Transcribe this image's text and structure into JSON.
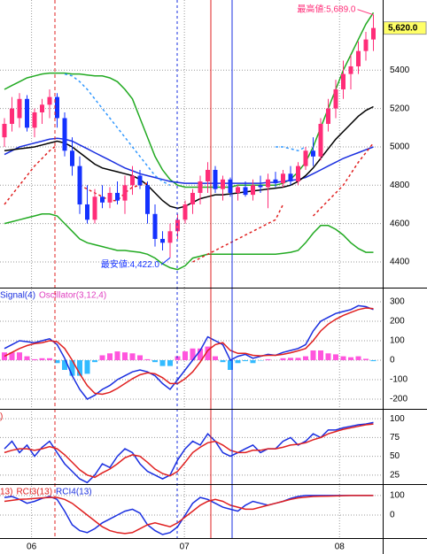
{
  "chart_data": [
    {
      "type": "candlestick",
      "ylim": [
        4266,
        5766
      ],
      "yticks": [
        4400,
        4600,
        4800,
        5000,
        5200,
        5400
      ],
      "up_color": "#ff2d78",
      "down_color": "#1432ff",
      "grid": true,
      "open": [
        5050,
        5120,
        5150,
        5250,
        5100,
        5180,
        5220,
        5260,
        5150,
        4980,
        4900,
        4700,
        4620,
        4740,
        4710,
        4760,
        4720,
        4800,
        4850,
        4800,
        4650,
        4520,
        4500,
        4560,
        4620,
        4700,
        4760,
        4820,
        4880,
        4780,
        4830,
        4760,
        4790,
        4750,
        4800,
        4790,
        4830,
        4810,
        4860,
        4820,
        4900,
        4980,
        4950,
        5120,
        5200,
        5300,
        5380,
        5420,
        5500,
        5560
      ],
      "high": [
        5150,
        5260,
        5280,
        5270,
        5200,
        5250,
        5300,
        5280,
        5180,
        5050,
        4950,
        4800,
        4780,
        4800,
        4790,
        4820,
        4850,
        4900,
        4880,
        4820,
        4700,
        4560,
        4600,
        4650,
        4720,
        4780,
        4850,
        4920,
        4900,
        4850,
        4840,
        4800,
        4820,
        4830,
        4850,
        4860,
        4870,
        4880,
        4900,
        4920,
        5000,
        5050,
        5150,
        5250,
        5350,
        5450,
        5480,
        5550,
        5600,
        5689
      ],
      "low": [
        5000,
        5080,
        5100,
        5080,
        5050,
        5120,
        5150,
        5100,
        4950,
        4850,
        4650,
        4600,
        4600,
        4680,
        4680,
        4700,
        4650,
        4750,
        4780,
        4600,
        4480,
        4460,
        4422,
        4520,
        4600,
        4650,
        4700,
        4760,
        4760,
        4720,
        4740,
        4720,
        4740,
        4720,
        4760,
        4680,
        4790,
        4790,
        4800,
        4800,
        4880,
        4900,
        4930,
        5080,
        5150,
        5250,
        5300,
        5380,
        5450,
        5500
      ],
      "close": [
        5120,
        5200,
        5250,
        5100,
        5180,
        5220,
        5260,
        5150,
        4980,
        4900,
        4700,
        4620,
        4740,
        4710,
        4760,
        4720,
        4800,
        4850,
        4800,
        4650,
        4520,
        4500,
        4560,
        4620,
        4700,
        4760,
        4820,
        4880,
        4780,
        4830,
        4760,
        4790,
        4750,
        4800,
        4790,
        4830,
        4810,
        4860,
        4820,
        4900,
        4980,
        4950,
        5120,
        5200,
        5300,
        5380,
        5420,
        5500,
        5560,
        5620
      ],
      "series": [
        {
          "color": "#22aa22",
          "values": [
            5300,
            5320,
            5340,
            5360,
            5370,
            5380,
            5385,
            5385,
            5385,
            5380,
            5380,
            5375,
            5370,
            5370,
            5360,
            5340,
            5300,
            5250,
            5150,
            5050,
            4950,
            4880,
            4830,
            4800,
            4790,
            4790,
            4790,
            4790,
            4790,
            4790,
            4790,
            4800,
            4800,
            4800,
            4800,
            4800,
            4800,
            4810,
            4830,
            4870,
            4920,
            5000,
            5100,
            5200,
            5300,
            5400,
            5480,
            5560,
            5640,
            5700
          ]
        },
        {
          "color": "#22aa22",
          "values": [
            4600,
            4610,
            4620,
            4630,
            4640,
            4650,
            4650,
            4640,
            4600,
            4560,
            4520,
            4500,
            4490,
            4480,
            4470,
            4460,
            4460,
            4455,
            4450,
            4440,
            4420,
            4390,
            4370,
            4360,
            4380,
            4420,
            4430,
            4440,
            4440,
            4440,
            4440,
            4440,
            4440,
            4440,
            4440,
            4440,
            4440,
            4445,
            4450,
            4460,
            4500,
            4550,
            4590,
            4590,
            4570,
            4540,
            4500,
            4470,
            4450,
            4450
          ]
        },
        {
          "color": "#1a2fe0",
          "values": [
            4960,
            4980,
            5000,
            5010,
            5020,
            5030,
            5040,
            5045,
            5040,
            5030,
            5010,
            4990,
            4970,
            4950,
            4930,
            4910,
            4890,
            4875,
            4860,
            4850,
            4840,
            4830,
            4820,
            4815,
            4810,
            4810,
            4810,
            4810,
            4810,
            4810,
            4810,
            4810,
            4810,
            4810,
            4810,
            4815,
            4815,
            4820,
            4825,
            4830,
            4840,
            4860,
            4880,
            4900,
            4920,
            4940,
            4955,
            4970,
            4985,
            5000
          ]
        },
        {
          "color": "#000000",
          "values": [
            4980,
            4985,
            4990,
            4995,
            5000,
            5010,
            5020,
            5030,
            5020,
            5000,
            4970,
            4940,
            4910,
            4890,
            4880,
            4870,
            4860,
            4850,
            4830,
            4800,
            4760,
            4720,
            4690,
            4680,
            4690,
            4710,
            4730,
            4740,
            4750,
            4750,
            4755,
            4760,
            4765,
            4770,
            4775,
            4780,
            4785,
            4790,
            4800,
            4820,
            4850,
            4890,
            4940,
            4990,
            5040,
            5080,
            5120,
            5160,
            5190,
            5210
          ]
        },
        {
          "color": "#e02020",
          "dashed": true,
          "values": [
            4700,
            4750,
            4800,
            4850,
            4900,
            4940,
            4980,
            5010,
            null,
            null,
            4800,
            4780,
            4760,
            4740,
            4720,
            4720,
            4760,
            4790,
            4800,
            4810,
            null,
            null,
            null,
            null,
            null,
            4400,
            4420,
            4440,
            4460,
            4480,
            4500,
            4520,
            4540,
            4560,
            4580,
            4600,
            4620,
            4700,
            null,
            null,
            null,
            4640,
            4680,
            4720,
            4760,
            4800,
            4860,
            4920,
            4970,
            5020
          ]
        },
        {
          "color": "#3399ff",
          "dashed": true,
          "values": [
            null,
            null,
            null,
            null,
            null,
            null,
            null,
            null,
            5380,
            5370,
            5340,
            5300,
            5250,
            5200,
            5150,
            5100,
            5050,
            5000,
            4950,
            4900,
            4850,
            4820,
            4800,
            null,
            null,
            null,
            null,
            null,
            null,
            null,
            null,
            null,
            null,
            null,
            null,
            null,
            5000,
            5000,
            4990,
            4980,
            5000,
            null,
            null,
            null,
            null,
            null,
            null,
            null,
            null,
            null
          ]
        }
      ],
      "annotations": [
        {
          "text": "最高値:5,689.0",
          "value": 5689,
          "color": "#ff2d78",
          "of": "high"
        },
        {
          "text": "最安値:4,422.0",
          "value": 4422,
          "color": "#1432ff",
          "of": "low"
        }
      ],
      "last_price": {
        "text": "5,620.0",
        "value": 5620,
        "color": "#ffff66"
      }
    },
    {
      "type": "line",
      "ylim": [
        -250,
        368
      ],
      "yticks": [
        -200,
        -100,
        0,
        100,
        200,
        300
      ],
      "grid": true,
      "legend": [
        {
          "text": "Signal(4)",
          "color": "#1a2fe0"
        },
        {
          "text": "Oscillator(3,12,4)",
          "color": "#e040c0"
        }
      ],
      "bars": {
        "positive_color": "#ff55dd",
        "negative_color": "#33bbff",
        "values": [
          40,
          40,
          40,
          20,
          5,
          10,
          10,
          -15,
          -50,
          -80,
          -80,
          -70,
          -10,
          25,
          35,
          45,
          40,
          35,
          25,
          5,
          -10,
          -30,
          -30,
          20,
          45,
          60,
          60,
          70,
          20,
          -10,
          -50,
          -15,
          -5,
          -15,
          -2,
          5,
          0,
          10,
          12,
          12,
          20,
          50,
          50,
          35,
          30,
          20,
          15,
          20,
          7,
          -5
        ]
      },
      "series": [
        {
          "color": "#1a2fe0",
          "values": [
            60,
            80,
            100,
            95,
            90,
            100,
            110,
            80,
            10,
            -80,
            -150,
            -200,
            -180,
            -150,
            -130,
            -100,
            -80,
            -60,
            -50,
            -60,
            -80,
            -120,
            -150,
            -100,
            -50,
            0,
            50,
            120,
            100,
            80,
            0,
            20,
            30,
            10,
            20,
            30,
            25,
            40,
            50,
            60,
            80,
            150,
            200,
            220,
            240,
            250,
            260,
            280,
            275,
            260
          ]
        },
        {
          "color": "#e02020",
          "values": [
            20,
            40,
            60,
            75,
            85,
            90,
            100,
            95,
            60,
            0,
            -70,
            -130,
            -170,
            -175,
            -165,
            -145,
            -120,
            -95,
            -75,
            -65,
            -70,
            -90,
            -120,
            -120,
            -95,
            -60,
            -10,
            50,
            80,
            90,
            50,
            35,
            35,
            25,
            22,
            25,
            25,
            30,
            38,
            48,
            60,
            100,
            150,
            185,
            210,
            230,
            245,
            260,
            268,
            265
          ]
        }
      ]
    },
    {
      "type": "line",
      "ylim": [
        13,
        112
      ],
      "yticks": [
        25,
        50,
        75,
        100
      ],
      "grid": true,
      "legend": [
        {
          "text": ")",
          "color": "#e02020"
        }
      ],
      "series": [
        {
          "color": "#1a2fe0",
          "values": [
            60,
            70,
            55,
            65,
            50,
            62,
            70,
            55,
            40,
            30,
            20,
            15,
            25,
            40,
            35,
            50,
            60,
            55,
            40,
            30,
            25,
            20,
            25,
            45,
            60,
            70,
            65,
            80,
            70,
            55,
            50,
            55,
            60,
            65,
            55,
            60,
            60,
            70,
            75,
            65,
            70,
            80,
            75,
            85,
            85,
            88,
            90,
            92,
            93,
            95
          ]
        },
        {
          "color": "#e02020",
          "values": [
            55,
            58,
            60,
            60,
            58,
            60,
            63,
            60,
            52,
            42,
            32,
            25,
            22,
            28,
            33,
            40,
            48,
            52,
            50,
            42,
            33,
            27,
            24,
            30,
            42,
            55,
            62,
            68,
            70,
            65,
            58,
            55,
            55,
            58,
            58,
            60,
            60,
            62,
            65,
            66,
            68,
            72,
            75,
            80,
            83,
            86,
            88,
            90,
            92,
            93
          ]
        }
      ]
    },
    {
      "type": "line",
      "ylim": [
        -118,
        154
      ],
      "yticks": [
        0,
        100
      ],
      "grid": true,
      "legend": [
        {
          "text": "13)",
          "color": "#e02020"
        },
        {
          "text": "RCI3(13)",
          "color": "#e02020"
        },
        {
          "text": "RCI4(13)",
          "color": "#1a2fe0"
        }
      ],
      "xticks": [
        {
          "value": 3.6,
          "label": "06"
        },
        {
          "value": 23.9,
          "label": "07"
        },
        {
          "value": 44.5,
          "label": "08"
        }
      ],
      "series": [
        {
          "color": "#1a2fe0",
          "values": [
            90,
            95,
            80,
            60,
            70,
            85,
            95,
            80,
            20,
            -50,
            -80,
            -90,
            -70,
            -40,
            -20,
            0,
            20,
            30,
            10,
            -50,
            -80,
            -100,
            -90,
            -60,
            0,
            60,
            90,
            80,
            60,
            40,
            30,
            20,
            50,
            70,
            60,
            50,
            60,
            70,
            85,
            95,
            100,
            100,
            100,
            100,
            100,
            100,
            100,
            100,
            100,
            100
          ]
        },
        {
          "color": "#e02020",
          "values": [
            70,
            75,
            80,
            82,
            85,
            88,
            90,
            90,
            80,
            60,
            30,
            0,
            -30,
            -60,
            -80,
            -90,
            -95,
            -90,
            -70,
            -50,
            -40,
            -50,
            -60,
            -40,
            -10,
            20,
            50,
            70,
            80,
            70,
            50,
            40,
            30,
            30,
            40,
            50,
            60,
            70,
            80,
            88,
            92,
            95,
            96,
            97,
            98,
            99,
            100,
            100,
            100,
            100
          ]
        }
      ]
    }
  ]
}
